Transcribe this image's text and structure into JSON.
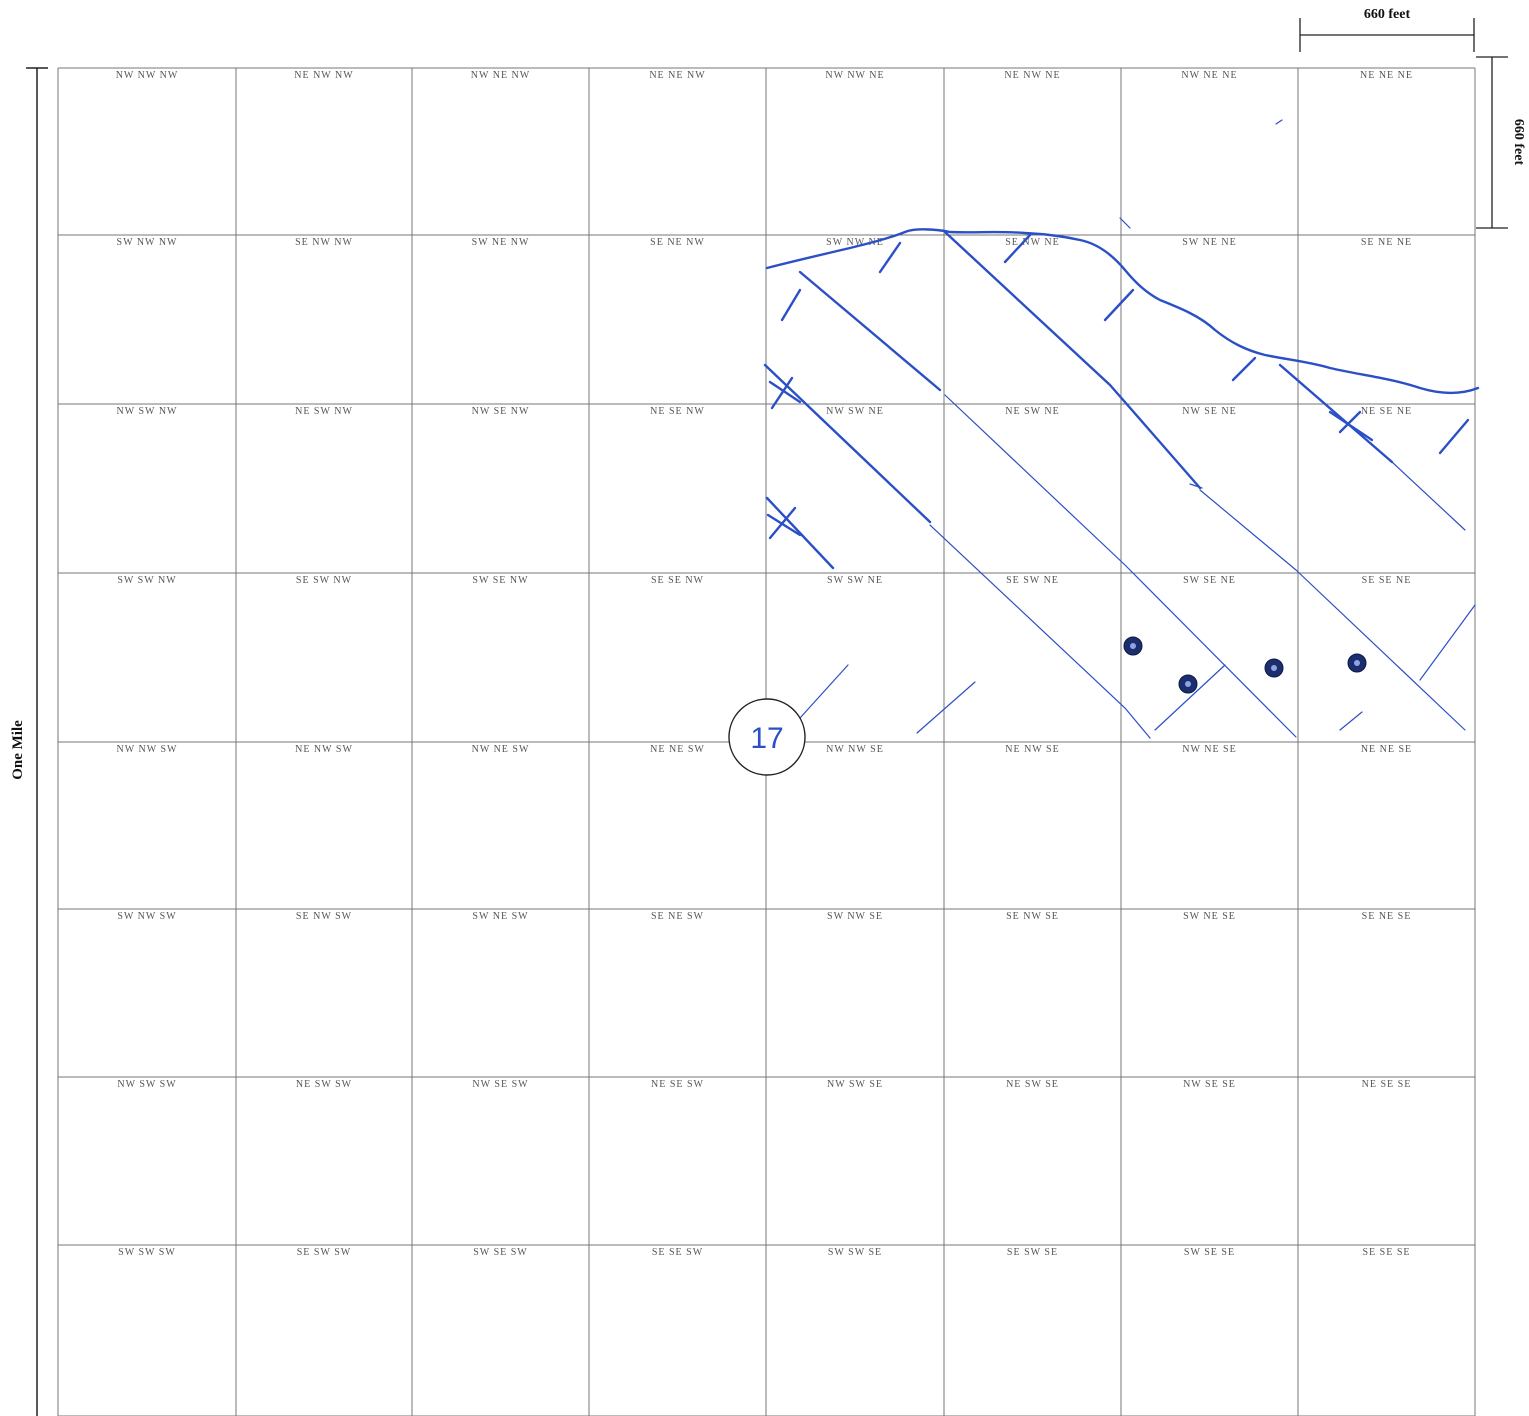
{
  "scale": {
    "horizontal_label": "660 feet",
    "vertical_label": "660 feet",
    "side_label": "One Mile"
  },
  "section_number": "17",
  "ink_color": "#2b4fc7",
  "wells": [
    {
      "label": "well-1"
    },
    {
      "label": "well-2"
    },
    {
      "label": "well-3"
    },
    {
      "label": "well-4"
    }
  ],
  "grid_labels": [
    [
      "NW NW NW",
      "NE NW NW",
      "NW NE NW",
      "NE NE NW",
      "NW NW NE",
      "NE NW NE",
      "NW NE NE",
      "NE NE NE"
    ],
    [
      "SW NW NW",
      "SE NW NW",
      "SW NE NW",
      "SE NE NW",
      "SW NW NE",
      "SE NW NE",
      "SW NE NE",
      "SE NE NE"
    ],
    [
      "NW SW NW",
      "NE SW NW",
      "NW SE NW",
      "NE SE NW",
      "NW SW NE",
      "NE SW NE",
      "NW SE NE",
      "NE SE NE"
    ],
    [
      "SW SW NW",
      "SE SW NW",
      "SW SE NW",
      "SE SE NW",
      "SW SW NE",
      "SE SW NE",
      "SW SE NE",
      "SE SE NE"
    ],
    [
      "NW NW SW",
      "NE NW SW",
      "NW NE SW",
      "NE NE SW",
      "NW NW SE",
      "NE NW SE",
      "NW NE SE",
      "NE NE SE"
    ],
    [
      "SW NW SW",
      "SE NW SW",
      "SW NE SW",
      "SE NE SW",
      "SW NW SE",
      "SE NW SE",
      "SW NE SE",
      "SE NE SE"
    ],
    [
      "NW SW SW",
      "NE SW SW",
      "NW SE SW",
      "NE SE SW",
      "NW SW SE",
      "NE SW SE",
      "NW SE SE",
      "NE SE SE"
    ],
    [
      "SW SW SW",
      "SE SW SW",
      "SW SE SW",
      "SE SE SW",
      "SW SW SE",
      "SE SW SE",
      "SW SE SE",
      "SE SE SE"
    ]
  ]
}
